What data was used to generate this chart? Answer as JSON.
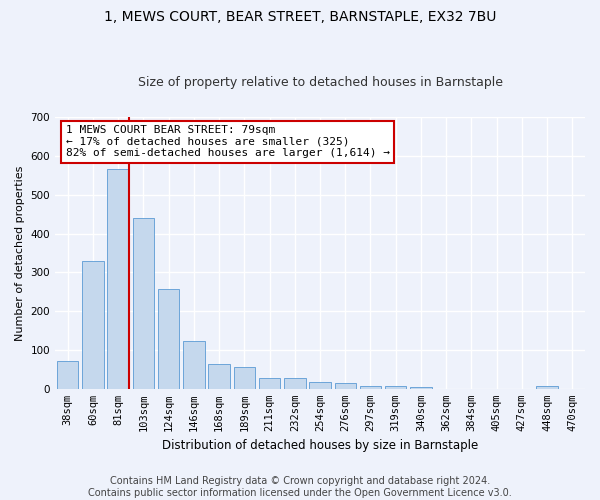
{
  "title": "1, MEWS COURT, BEAR STREET, BARNSTAPLE, EX32 7BU",
  "subtitle": "Size of property relative to detached houses in Barnstaple",
  "xlabel": "Distribution of detached houses by size in Barnstaple",
  "ylabel": "Number of detached properties",
  "bar_color": "#c5d8ed",
  "bar_edge_color": "#5b9bd5",
  "background_color": "#eef2fb",
  "grid_color": "#ffffff",
  "categories": [
    "38sqm",
    "60sqm",
    "81sqm",
    "103sqm",
    "124sqm",
    "146sqm",
    "168sqm",
    "189sqm",
    "211sqm",
    "232sqm",
    "254sqm",
    "276sqm",
    "297sqm",
    "319sqm",
    "340sqm",
    "362sqm",
    "384sqm",
    "405sqm",
    "427sqm",
    "448sqm",
    "470sqm"
  ],
  "values": [
    72,
    330,
    565,
    440,
    258,
    122,
    63,
    55,
    28,
    28,
    17,
    14,
    7,
    8,
    5,
    0,
    0,
    0,
    0,
    7,
    0
  ],
  "ylim": [
    0,
    700
  ],
  "yticks": [
    0,
    100,
    200,
    300,
    400,
    500,
    600,
    700
  ],
  "subject_bar_index": 2,
  "annotation_text": "1 MEWS COURT BEAR STREET: 79sqm\n← 17% of detached houses are smaller (325)\n82% of semi-detached houses are larger (1,614) →",
  "annotation_box_color": "#ffffff",
  "annotation_box_edge_color": "#cc0000",
  "vline_color": "#cc0000",
  "footer": "Contains HM Land Registry data © Crown copyright and database right 2024.\nContains public sector information licensed under the Open Government Licence v3.0.",
  "title_fontsize": 10,
  "subtitle_fontsize": 9,
  "annotation_fontsize": 8,
  "footer_fontsize": 7,
  "ylabel_fontsize": 8,
  "xlabel_fontsize": 8.5,
  "tick_fontsize": 7.5
}
